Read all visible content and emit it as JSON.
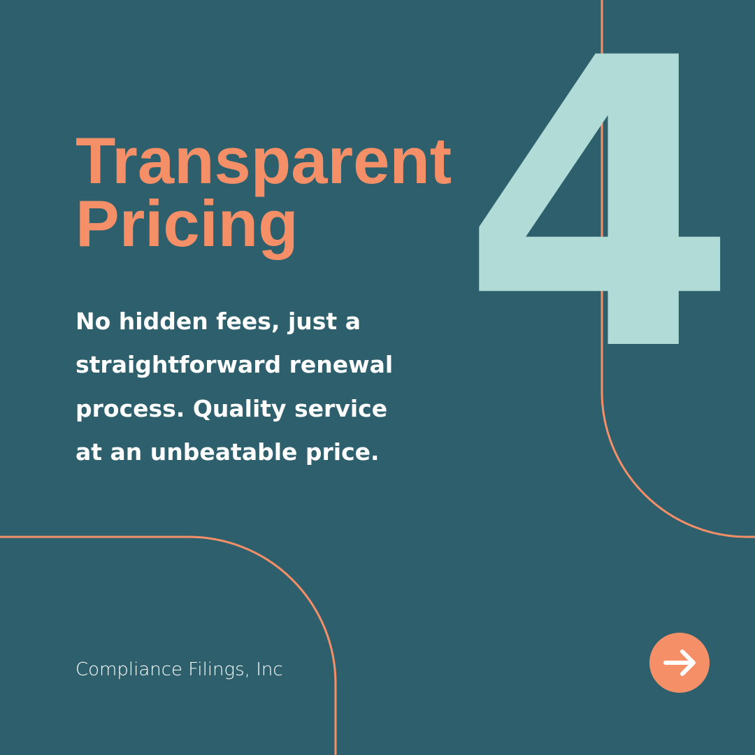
{
  "slide": {
    "number": "4",
    "title": [
      "Transparent",
      "Pricing"
    ],
    "body": [
      "No hidden fees, just a",
      "straightforward renewal",
      "process. Quality service",
      "at an unbeatable price."
    ],
    "footer": "Compliance Filings, Inc"
  }
}
